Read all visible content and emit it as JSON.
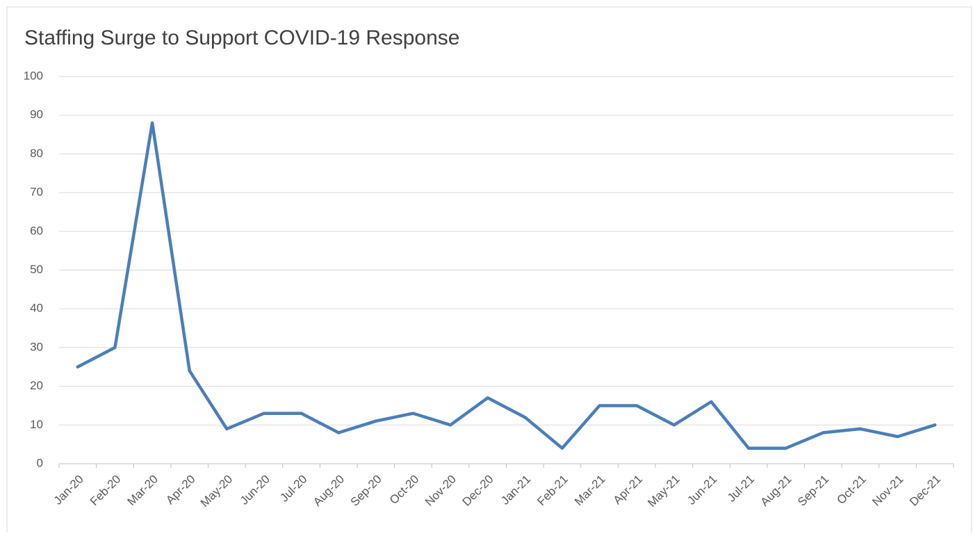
{
  "chart_data": {
    "type": "line",
    "title": "Staffing Surge to Support COVID-19 Response",
    "categories": [
      "Jan-20",
      "Feb-20",
      "Mar-20",
      "Apr-20",
      "May-20",
      "Jun-20",
      "Jul-20",
      "Aug-20",
      "Sep-20",
      "Oct-20",
      "Nov-20",
      "Dec-20",
      "Jan-21",
      "Feb-21",
      "Mar-21",
      "Apr-21",
      "May-21",
      "Jun-21",
      "Jul-21",
      "Aug-21",
      "Sep-21",
      "Oct-21",
      "Nov-21",
      "Dec-21"
    ],
    "values": [
      25,
      30,
      88,
      24,
      9,
      13,
      13,
      8,
      11,
      13,
      10,
      17,
      12,
      4,
      15,
      15,
      10,
      16,
      4,
      4,
      8,
      9,
      7,
      10
    ],
    "color": "#4a7ebb",
    "ylim": [
      0,
      100
    ],
    "yticks": [
      0,
      10,
      20,
      30,
      40,
      50,
      60,
      70,
      80,
      90,
      100
    ],
    "grid": true
  }
}
